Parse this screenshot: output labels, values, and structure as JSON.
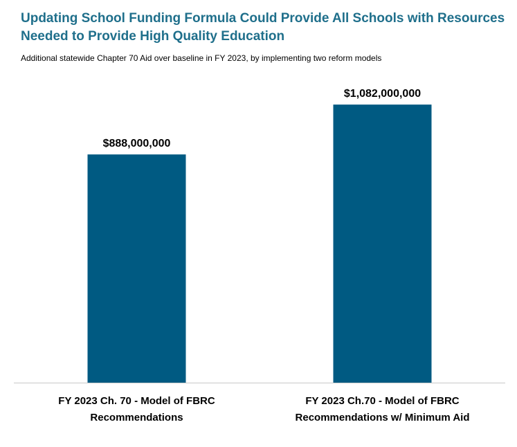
{
  "chart_data": {
    "type": "bar",
    "title": "Updating School Funding Formula Could Provide All Schools with Resources Needed to Provide High Quality Education",
    "subtitle": "Additional statewide Chapter 70 Aid over baseline in FY 2023, by implementing two reform models",
    "categories": [
      [
        "FY 2023 Ch. 70 - Model of FBRC",
        "Recommendations"
      ],
      [
        "FY 2023 Ch.70 - Model of FBRC",
        "Recommendations w/ Minimum Aid"
      ]
    ],
    "values": [
      888000000,
      1082000000
    ],
    "data_labels": [
      "$888,000,000",
      "$1,082,000,000"
    ],
    "ylim": [
      0,
      1182000000
    ],
    "grid": false,
    "legend": "none",
    "bar_color": "#005a82",
    "axis_color": "#c8c8c8",
    "title_color": "#1f6f8b"
  }
}
